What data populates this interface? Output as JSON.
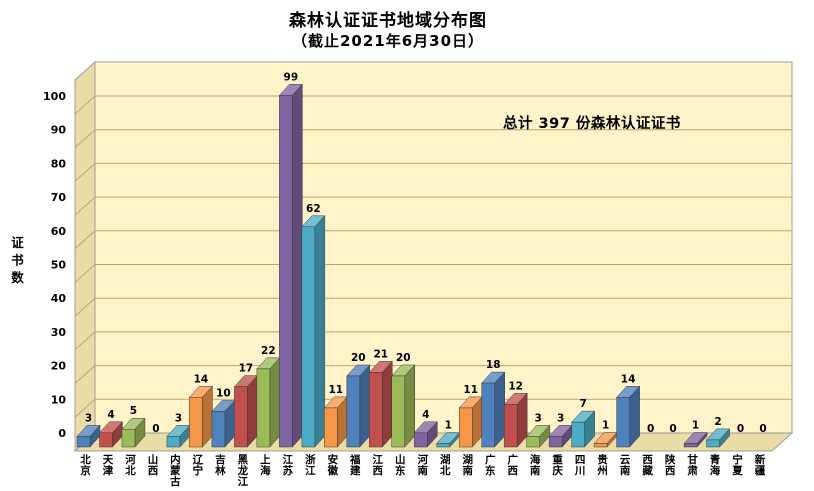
{
  "header": {
    "title": "森林认证证书地域分布图",
    "subtitle": "（截止2021年6月30日）"
  },
  "annotation": "总计 397 份森林认证证书",
  "chart_data": {
    "type": "bar",
    "style": "3d-column",
    "title": "森林认证证书地域分布图",
    "subtitle": "（截止2021年6月30日）",
    "xlabel": "",
    "ylabel": "证书数",
    "ylim": [
      0,
      100
    ],
    "yticks": [
      0,
      10,
      20,
      30,
      40,
      50,
      60,
      70,
      80,
      90,
      100
    ],
    "grid": true,
    "legend": "none",
    "annotation": "总计 397 份森林认证证书",
    "categories": [
      "北京",
      "天津",
      "河北",
      "山西",
      "内蒙古",
      "辽宁",
      "吉林",
      "黑龙江",
      "上海",
      "江苏",
      "浙江",
      "安徽",
      "福建",
      "江西",
      "山东",
      "河南",
      "湖北",
      "湖南",
      "广东",
      "广西",
      "海南",
      "重庆",
      "四川",
      "贵州",
      "云南",
      "西藏",
      "陕西",
      "甘肃",
      "青海",
      "宁夏",
      "新疆"
    ],
    "values": [
      3,
      4,
      5,
      0,
      3,
      14,
      10,
      17,
      22,
      99,
      62,
      11,
      20,
      21,
      20,
      4,
      1,
      11,
      18,
      12,
      3,
      3,
      7,
      1,
      14,
      0,
      0,
      1,
      2,
      0,
      0
    ],
    "palette": [
      "#4F81BD",
      "#C0504D",
      "#9BBB59",
      "#8064A2",
      "#4BACC6",
      "#F79646"
    ],
    "colors": {
      "wall": "#FFF4C9",
      "side": "#EADCA6",
      "floor": "#EADCA6",
      "grid": "#BFA46A",
      "edge": "#9C9C9C",
      "value_label": "#000000",
      "axis_label": "#000000"
    }
  }
}
